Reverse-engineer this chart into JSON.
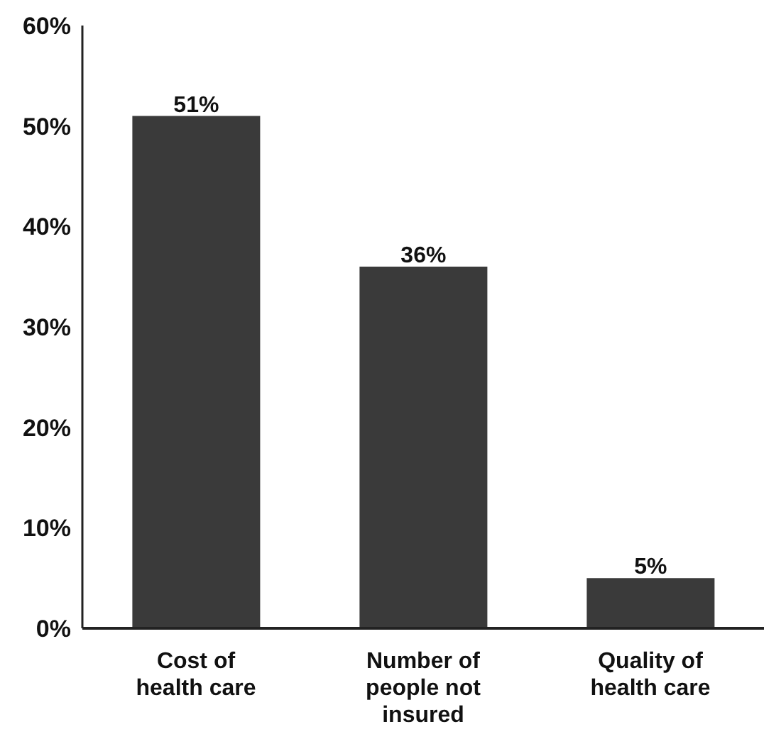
{
  "chart_data": {
    "type": "bar",
    "categories": [
      "Cost of health care",
      "Number of people not insured",
      "Quality of health care"
    ],
    "values": [
      51,
      36,
      5
    ],
    "color": "#3a3a3a",
    "value_labels": [
      "51%",
      "36%",
      "5%"
    ],
    "ylim": [
      0,
      60
    ],
    "yticks": [
      {
        "value": 0,
        "label": "0%"
      },
      {
        "value": 10,
        "label": "10%"
      },
      {
        "value": 20,
        "label": "20%"
      },
      {
        "value": 30,
        "label": "30%"
      },
      {
        "value": 40,
        "label": "40%"
      },
      {
        "value": 50,
        "label": "50%"
      },
      {
        "value": 60,
        "label": "60%"
      }
    ],
    "grid": false,
    "legend": false
  }
}
